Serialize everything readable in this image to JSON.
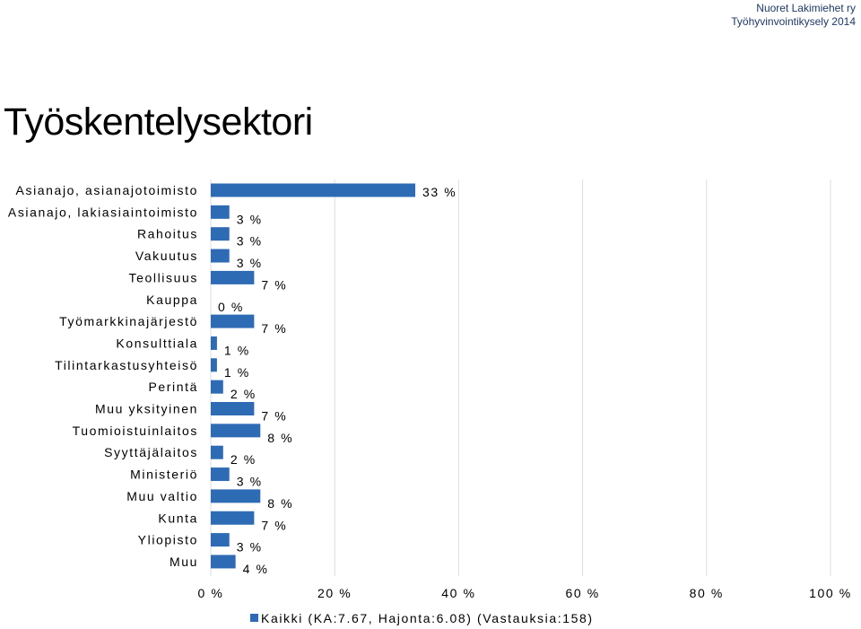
{
  "header": {
    "org": "Nuoret Lakimiehet ry",
    "survey": "Työhyvinvointikysely 2014"
  },
  "page_title": "Työskentelysektori",
  "chart_data": {
    "type": "bar",
    "orientation": "horizontal",
    "categories": [
      "Asianajo, asianajotoimisto",
      "Asianajo, lakiasiaintoimisto",
      "Rahoitus",
      "Vakuutus",
      "Teollisuus",
      "Kauppa",
      "Työmarkkinajärjestö",
      "Konsulttiala",
      "Tilintarkastusyhteisö",
      "Perintä",
      "Muu yksityinen",
      "Tuomioistuinlaitos",
      "Syyttäjälaitos",
      "Ministeriö",
      "Muu valtio",
      "Kunta",
      "Yliopisto",
      "Muu"
    ],
    "series": [
      {
        "name": "Kaikki (KA:7.67, Hajonta:6.08) (Vastauksia:158)",
        "values": [
          33,
          3,
          3,
          3,
          7,
          0,
          7,
          1,
          1,
          2,
          7,
          8,
          2,
          3,
          8,
          7,
          3,
          4
        ],
        "labels": [
          "33 %",
          "3 %",
          "3 %",
          "3 %",
          "7 %",
          "0 %",
          "7 %",
          "1 %",
          "1 %",
          "2 %",
          "7 %",
          "8 %",
          "2 %",
          "3 %",
          "8 %",
          "7 %",
          "3 %",
          "4 %"
        ]
      }
    ],
    "xlim": [
      0,
      100
    ],
    "xticks": [
      0,
      20,
      40,
      60,
      80,
      100
    ],
    "xtick_labels": [
      "0 %",
      "20 %",
      "40 %",
      "60 %",
      "80 %",
      "100 %"
    ],
    "grid": true,
    "legend": "bottom",
    "bar_color": "#2e6bb5",
    "grid_color": "#d9dde8"
  }
}
